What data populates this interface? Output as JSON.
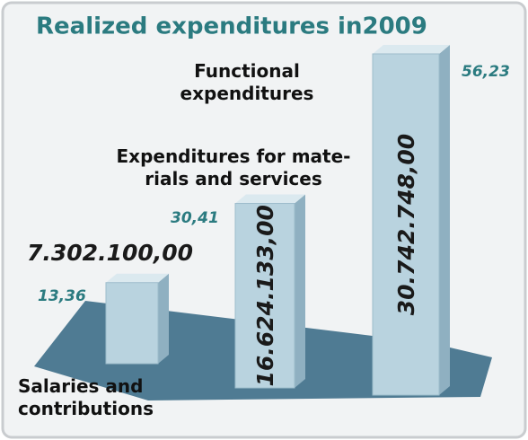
{
  "chart_data": {
    "type": "bar",
    "title": "Realized expenditures in2009",
    "categories": [
      "Salaries and\ncontributions",
      "Expenditures for mate-\nrials and services",
      "Functional expenditures"
    ],
    "values": [
      7302100,
      16624133,
      30742748
    ],
    "value_labels": [
      "7.302.100,00",
      "16.624.133,00",
      "30.742.748,00"
    ],
    "shares": {
      "values": [
        13.36,
        30.41,
        56.23
      ],
      "value_labels": [
        "13,36",
        "30,41",
        "56,23"
      ]
    },
    "color": "#b9d3df"
  }
}
